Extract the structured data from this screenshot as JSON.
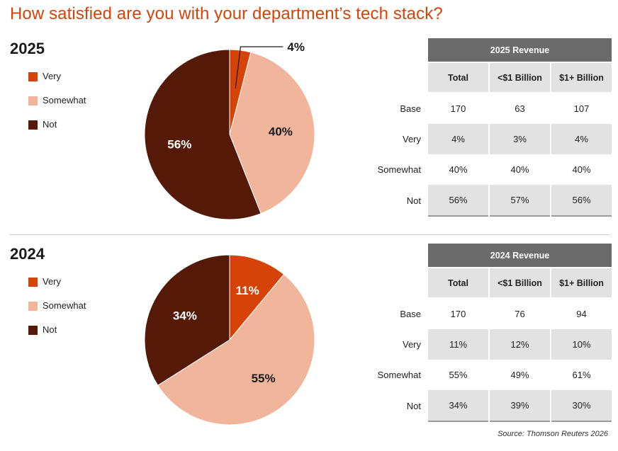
{
  "title": "How satisfied are you with your department’s tech stack?",
  "colors": {
    "very": "#d64309",
    "somewhat": "#f0b59b",
    "not": "#551a07",
    "title": "#d64309",
    "table_header": "#6b6b6b",
    "table_shade": "#e2e2e2"
  },
  "sections": [
    {
      "year": "2025",
      "legend": [
        "Very",
        "Somewhat",
        "Not"
      ],
      "table": {
        "header": "2025 Revenue",
        "columns": [
          "Total",
          "<$1 Billion",
          "$1+ Billion"
        ],
        "rows": [
          {
            "label": "Base",
            "values": [
              "170",
              "63",
              "107"
            ]
          },
          {
            "label": "Very",
            "values": [
              "4%",
              "3%",
              "4%"
            ]
          },
          {
            "label": "Somewhat",
            "values": [
              "40%",
              "40%",
              "40%"
            ]
          },
          {
            "label": "Not",
            "values": [
              "56%",
              "57%",
              "56%"
            ]
          }
        ]
      }
    },
    {
      "year": "2024",
      "legend": [
        "Very",
        "Somewhat",
        "Not"
      ],
      "table": {
        "header": "2024 Revenue",
        "columns": [
          "Total",
          "<$1 Billion",
          "$1+ Billion"
        ],
        "rows": [
          {
            "label": "Base",
            "values": [
              "170",
              "76",
              "94"
            ]
          },
          {
            "label": "Very",
            "values": [
              "11%",
              "12%",
              "10%"
            ]
          },
          {
            "label": "Somewhat",
            "values": [
              "55%",
              "49%",
              "61%"
            ]
          },
          {
            "label": "Not",
            "values": [
              "34%",
              "39%",
              "30%"
            ]
          }
        ]
      }
    }
  ],
  "chart_data": [
    {
      "type": "pie",
      "title": "2025",
      "categories": [
        "Very",
        "Somewhat",
        "Not"
      ],
      "values": [
        4,
        40,
        56
      ],
      "labels": [
        "4%",
        "40%",
        "56%"
      ]
    },
    {
      "type": "pie",
      "title": "2024",
      "categories": [
        "Very",
        "Somewhat",
        "Not"
      ],
      "values": [
        11,
        55,
        34
      ],
      "labels": [
        "11%",
        "55%",
        "34%"
      ]
    }
  ],
  "source": "Source: Thomson Reuters 2026"
}
